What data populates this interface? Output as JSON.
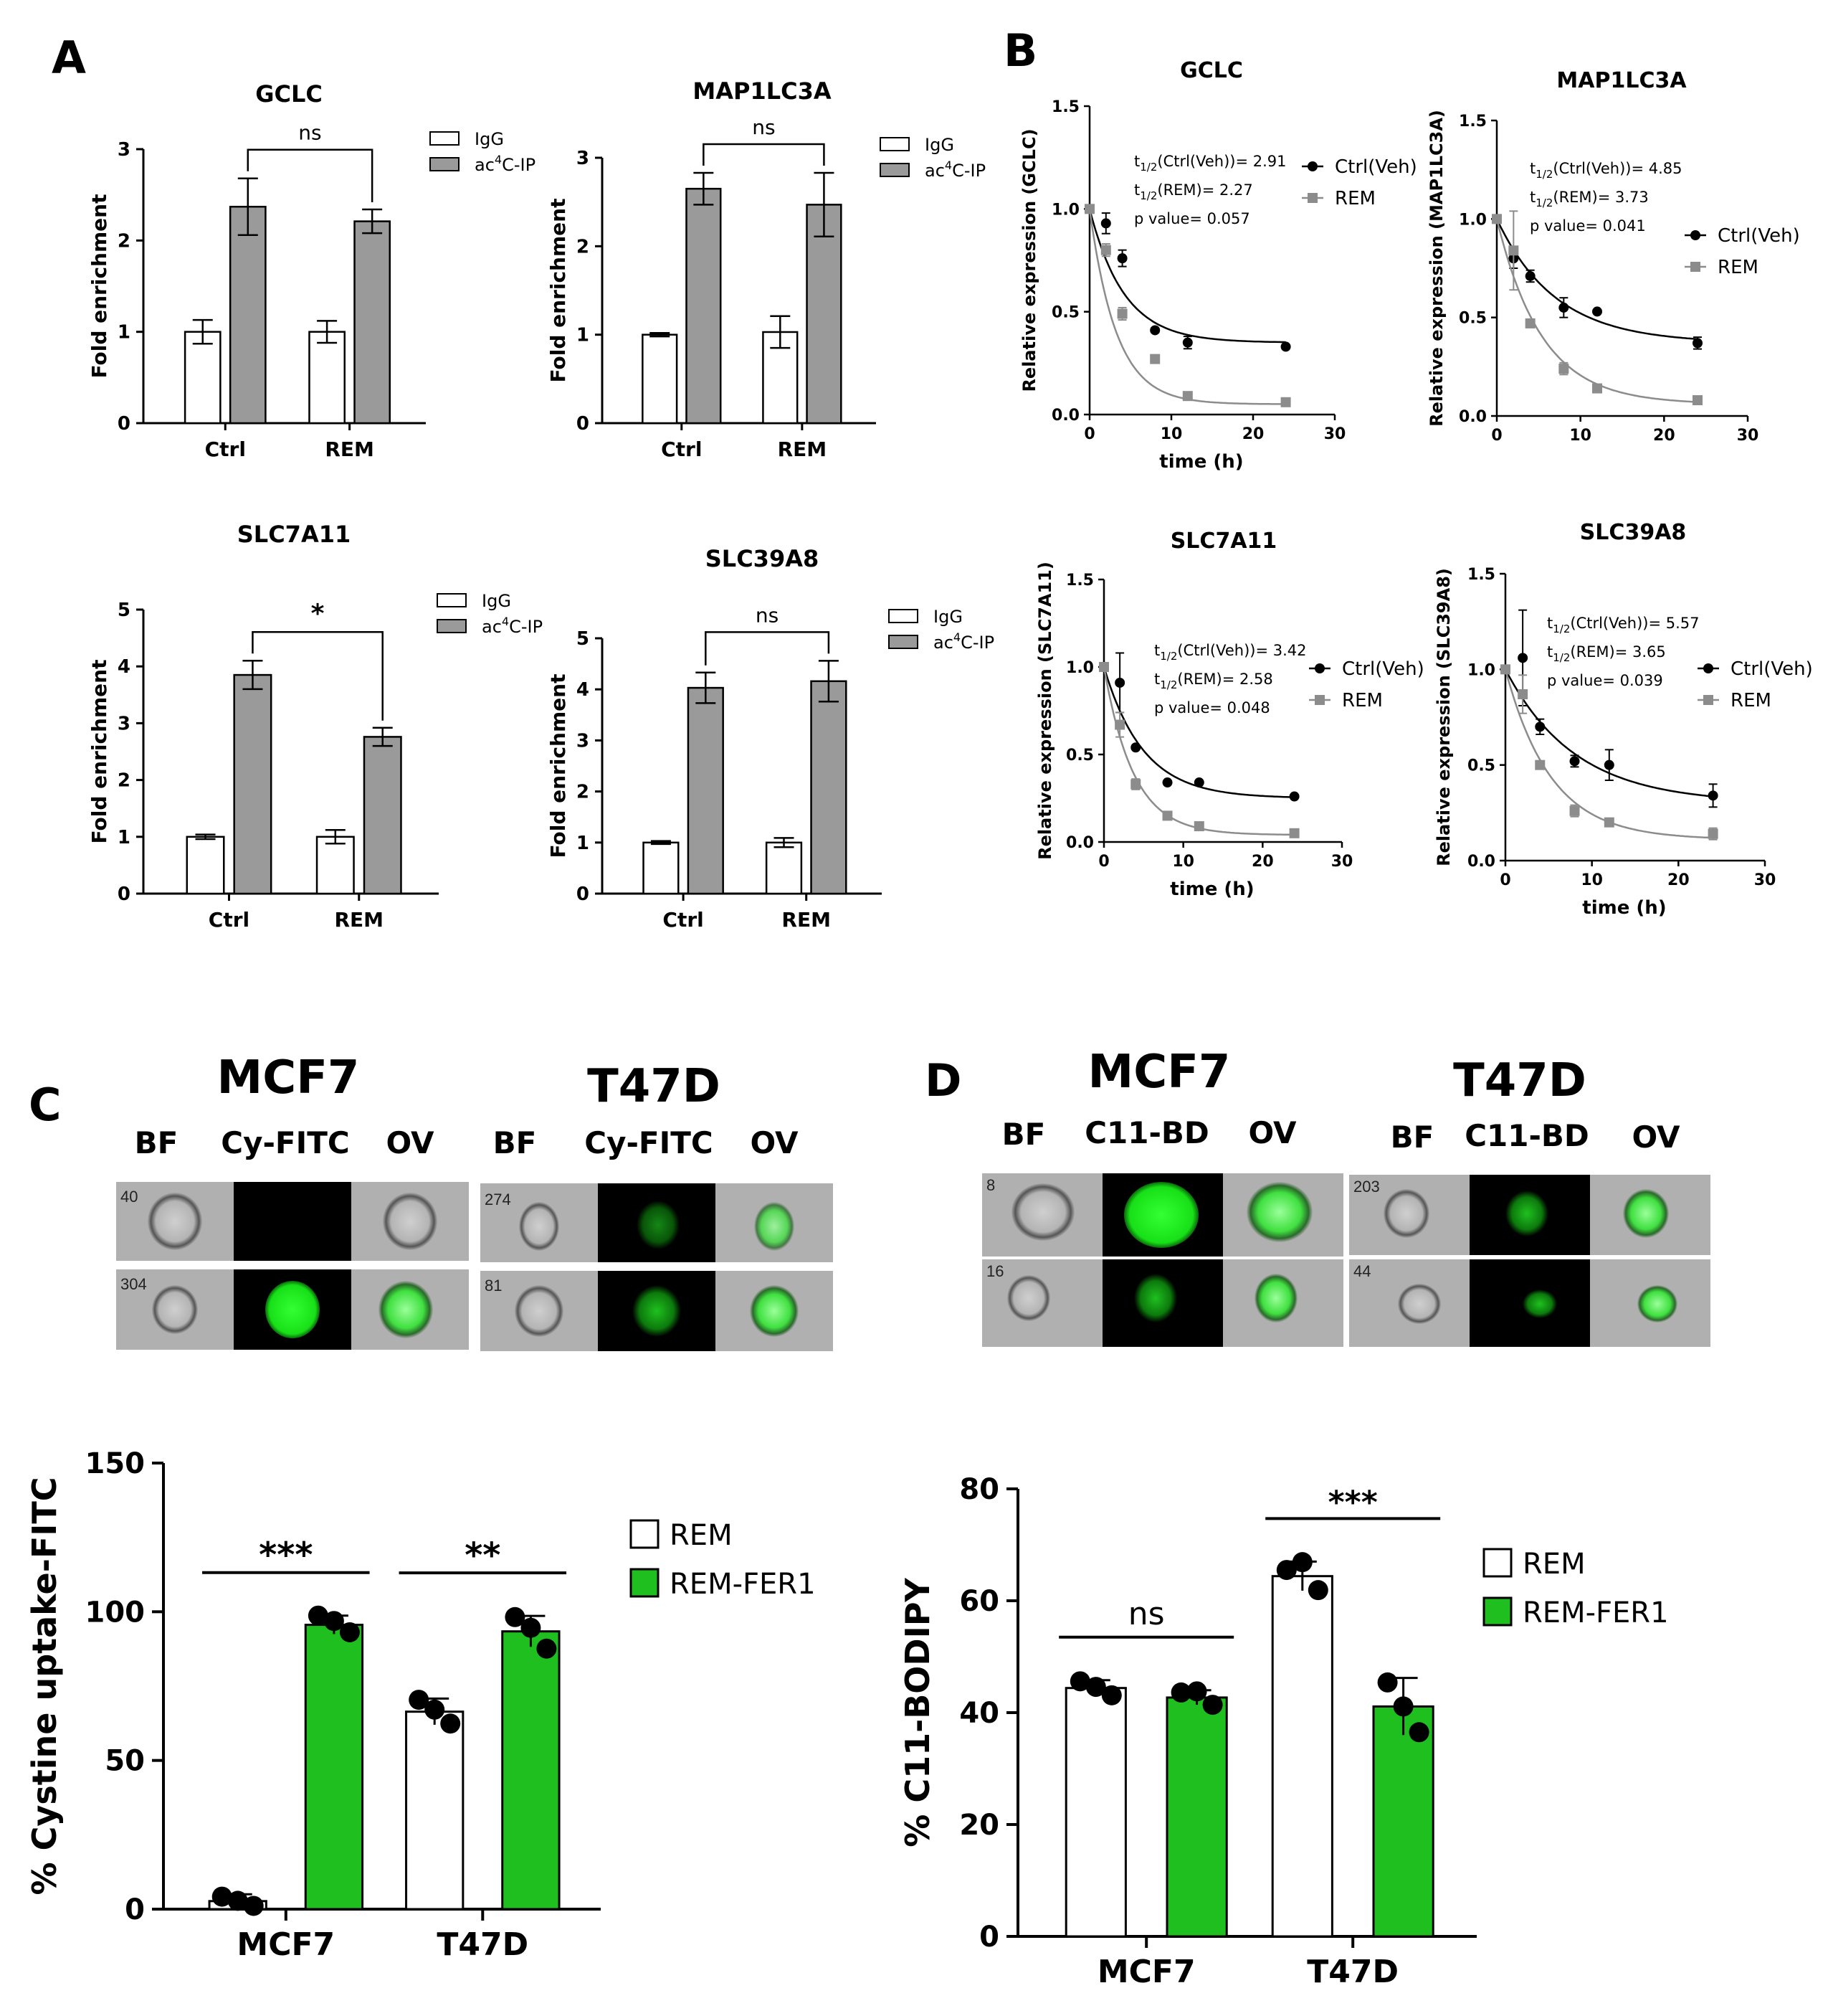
{
  "panel_letters": {
    "A": "A",
    "B": "B",
    "C": "C",
    "D": "D"
  },
  "chart_data": [
    {
      "id": "A1",
      "type": "bar",
      "title": "GCLC",
      "ylabel": "Fold enrichment",
      "categories": [
        "Ctrl",
        "REM"
      ],
      "ylim": [
        0,
        3
      ],
      "yticks": [
        0,
        1,
        2,
        3
      ],
      "series": [
        {
          "name": "IgG",
          "color": "#ffffff",
          "values": [
            1.0,
            1.0
          ],
          "errors": [
            0.13,
            0.12
          ]
        },
        {
          "name": "ac4C-IP",
          "color": "#9a9a9a",
          "values": [
            2.37,
            2.21
          ],
          "errors": [
            0.31,
            0.13
          ]
        }
      ],
      "significance": "ns"
    },
    {
      "id": "A2",
      "type": "bar",
      "title": "MAP1LC3A",
      "ylabel": "Fold enrichment",
      "categories": [
        "Ctrl",
        "REM"
      ],
      "ylim": [
        0,
        3
      ],
      "yticks": [
        0,
        1,
        2,
        3
      ],
      "series": [
        {
          "name": "IgG",
          "color": "#ffffff",
          "values": [
            1.0,
            1.03
          ],
          "errors": [
            0.02,
            0.18
          ]
        },
        {
          "name": "ac4C-IP",
          "color": "#9a9a9a",
          "values": [
            2.65,
            2.47
          ],
          "errors": [
            0.18,
            0.36
          ]
        }
      ],
      "significance": "ns"
    },
    {
      "id": "A3",
      "type": "bar",
      "title": "SLC7A11",
      "ylabel": "Fold enrichment",
      "categories": [
        "Ctrl",
        "REM"
      ],
      "ylim": [
        0,
        5
      ],
      "yticks": [
        0,
        1,
        2,
        3,
        4,
        5
      ],
      "series": [
        {
          "name": "IgG",
          "color": "#ffffff",
          "values": [
            1.0,
            1.0
          ],
          "errors": [
            0.04,
            0.12
          ]
        },
        {
          "name": "ac4C-IP",
          "color": "#9a9a9a",
          "values": [
            3.85,
            2.76
          ],
          "errors": [
            0.25,
            0.16
          ]
        }
      ],
      "significance": "*"
    },
    {
      "id": "A4",
      "type": "bar",
      "title": "SLC39A8",
      "ylabel": "Fold enrichment",
      "categories": [
        "Ctrl",
        "REM"
      ],
      "ylim": [
        0,
        5
      ],
      "yticks": [
        0,
        1,
        2,
        3,
        4,
        5
      ],
      "series": [
        {
          "name": "IgG",
          "color": "#ffffff",
          "values": [
            1.0,
            1.0
          ],
          "errors": [
            0.03,
            0.09
          ]
        },
        {
          "name": "ac4C-IP",
          "color": "#9a9a9a",
          "values": [
            4.03,
            4.16
          ],
          "errors": [
            0.3,
            0.4
          ]
        }
      ],
      "significance": "ns"
    },
    {
      "id": "B1",
      "type": "line",
      "title": "GCLC",
      "xlabel": "time (h)",
      "ylabel": "Relative expression (GCLC)",
      "xlim": [
        0,
        30
      ],
      "xticks": [
        0,
        10,
        20,
        30
      ],
      "ylim": [
        0,
        1.5
      ],
      "yticks": [
        0.0,
        0.5,
        1.0,
        1.5
      ],
      "series": [
        {
          "name": "Ctrl(Veh)",
          "color": "#000000",
          "marker": "circle",
          "x": [
            0,
            2,
            4,
            8,
            12,
            24
          ],
          "y": [
            1.0,
            0.93,
            0.76,
            0.41,
            0.35,
            0.33
          ],
          "errors": [
            0,
            0.05,
            0.04,
            0.01,
            0.03,
            0.01
          ],
          "half_life": 2.91,
          "plateau": 0.35
        },
        {
          "name": "REM",
          "color": "#8c8c8c",
          "marker": "square",
          "x": [
            0,
            2,
            4,
            8,
            12,
            24
          ],
          "y": [
            1.0,
            0.8,
            0.49,
            0.27,
            0.09,
            0.06
          ],
          "errors": [
            0,
            0.03,
            0.03,
            0.01,
            0.01,
            0.01
          ],
          "half_life": 2.27,
          "plateau": 0.05
        }
      ],
      "annotations": [
        "t1/2(Ctrl(Veh))= 2.91",
        "t1/2(REM)= 2.27",
        "p value= 0.057"
      ]
    },
    {
      "id": "B2",
      "type": "line",
      "title": "MAP1LC3A",
      "xlabel": "",
      "ylabel": "Relative expression (MAP1LC3A)",
      "xlim": [
        0,
        30
      ],
      "xticks": [
        0,
        10,
        20,
        30
      ],
      "ylim": [
        0,
        1.5
      ],
      "yticks": [
        0.0,
        0.5,
        1.0,
        1.5
      ],
      "series": [
        {
          "name": "Ctrl(Veh)",
          "color": "#000000",
          "marker": "circle",
          "x": [
            0,
            2,
            4,
            8,
            12,
            24
          ],
          "y": [
            1.0,
            0.8,
            0.71,
            0.55,
            0.53,
            0.37
          ],
          "errors": [
            0,
            0.05,
            0.03,
            0.05,
            0.01,
            0.03
          ],
          "half_life": 4.85,
          "plateau": 0.37
        },
        {
          "name": "REM",
          "color": "#8c8c8c",
          "marker": "square",
          "x": [
            0,
            2,
            4,
            8,
            12,
            24
          ],
          "y": [
            1.0,
            0.84,
            0.47,
            0.24,
            0.14,
            0.08
          ],
          "errors": [
            0,
            0.2,
            0.02,
            0.03,
            0.01,
            0.01
          ],
          "half_life": 3.73,
          "plateau": 0.06
        }
      ],
      "annotations": [
        "t1/2(Ctrl(Veh))= 4.85",
        "t1/2(REM)= 3.73",
        "p value= 0.041"
      ]
    },
    {
      "id": "B3",
      "type": "line",
      "title": "SLC7A11",
      "xlabel": "time (h)",
      "ylabel": "Relative expression (SLC7A11)",
      "xlim": [
        0,
        30
      ],
      "xticks": [
        0,
        10,
        20,
        30
      ],
      "ylim": [
        0,
        1.5
      ],
      "yticks": [
        0.0,
        0.5,
        1.0,
        1.5
      ],
      "series": [
        {
          "name": "Ctrl(Veh)",
          "color": "#000000",
          "marker": "circle",
          "x": [
            0,
            2,
            4,
            8,
            12,
            24
          ],
          "y": [
            1.0,
            0.91,
            0.54,
            0.34,
            0.34,
            0.26
          ],
          "errors": [
            0,
            0.17,
            0.01,
            0.01,
            0.01,
            0.01
          ],
          "half_life": 3.42,
          "plateau": 0.25
        },
        {
          "name": "REM",
          "color": "#8c8c8c",
          "marker": "square",
          "x": [
            0,
            2,
            4,
            8,
            12,
            24
          ],
          "y": [
            1.0,
            0.67,
            0.33,
            0.15,
            0.09,
            0.05
          ],
          "errors": [
            0,
            0.07,
            0.03,
            0.02,
            0.01,
            0.01
          ],
          "half_life": 2.58,
          "plateau": 0.04
        }
      ],
      "annotations": [
        "t1/2(Ctrl(Veh))= 3.42",
        "t1/2(REM)= 2.58",
        "p value= 0.048"
      ]
    },
    {
      "id": "B4",
      "type": "line",
      "title": "SLC39A8",
      "xlabel": "time (h)",
      "ylabel": "Relative expression (SLC39A8)",
      "xlim": [
        0,
        30
      ],
      "xticks": [
        0,
        10,
        20,
        30
      ],
      "ylim": [
        0,
        1.5
      ],
      "yticks": [
        0.0,
        0.5,
        1.0,
        1.5
      ],
      "series": [
        {
          "name": "Ctrl(Veh)",
          "color": "#000000",
          "marker": "circle",
          "x": [
            0,
            2,
            4,
            8,
            12,
            24
          ],
          "y": [
            1.0,
            1.06,
            0.7,
            0.52,
            0.5,
            0.34
          ],
          "errors": [
            0,
            0.25,
            0.04,
            0.03,
            0.08,
            0.06
          ],
          "half_life": 5.57,
          "plateau": 0.3
        },
        {
          "name": "REM",
          "color": "#8c8c8c",
          "marker": "square",
          "x": [
            0,
            2,
            4,
            8,
            12,
            24
          ],
          "y": [
            1.0,
            0.87,
            0.5,
            0.26,
            0.2,
            0.14
          ],
          "errors": [
            0,
            0.1,
            0.02,
            0.03,
            0.02,
            0.03
          ],
          "half_life": 3.65,
          "plateau": 0.11
        }
      ],
      "annotations": [
        "t1/2(Ctrl(Veh))= 5.57",
        "t1/2(REM)= 3.65",
        "p value= 0.039"
      ]
    },
    {
      "id": "C2",
      "type": "bar",
      "title": "",
      "ylabel": "% Cystine uptake-FITC",
      "categories": [
        "MCF7",
        "T47D"
      ],
      "ylim": [
        0,
        150
      ],
      "yticks": [
        0,
        50,
        100,
        150
      ],
      "series": [
        {
          "name": "REM",
          "color": "#ffffff",
          "values": [
            2.7,
            66.4
          ],
          "errors": [
            2.3,
            4.4
          ],
          "points": [
            [
              4.2,
              2.8,
              1.1
            ],
            [
              70.4,
              67.1,
              62.4
            ]
          ]
        },
        {
          "name": "REM-FER1",
          "color": "#1fbf1f",
          "values": [
            95.6,
            93.4
          ],
          "errors": [
            3.1,
            5.2
          ],
          "points": [
            [
              98.7,
              96.9,
              93.1
            ],
            [
              98.2,
              94.6,
              87.6
            ]
          ]
        }
      ],
      "significance": [
        "***",
        "**"
      ]
    },
    {
      "id": "D2",
      "type": "bar",
      "title": "",
      "ylabel": "% C11-BODIPY",
      "categories": [
        "MCF7",
        "T47D"
      ],
      "ylim": [
        0,
        80
      ],
      "yticks": [
        0,
        20,
        40,
        60,
        80
      ],
      "series": [
        {
          "name": "REM",
          "color": "#ffffff",
          "values": [
            44.4,
            64.4
          ],
          "errors": [
            1.4,
            2.6
          ],
          "points": [
            [
              45.6,
              44.6,
              43.1
            ],
            [
              65.5,
              66.9,
              61.9
            ]
          ]
        },
        {
          "name": "REM-FER1",
          "color": "#1fbf1f",
          "values": [
            42.7,
            41.1
          ],
          "errors": [
            1.3,
            5.1
          ],
          "points": [
            [
              43.6,
              43.8,
              41.4
            ],
            [
              45.4,
              41.1,
              36.5
            ]
          ]
        }
      ],
      "significance": [
        "ns",
        "***"
      ]
    }
  ],
  "panel_c": {
    "cell_lines": [
      "MCF7",
      "T47D"
    ],
    "channels": [
      "BF",
      "Cy-FITC",
      "OV"
    ],
    "cell_numbers": [
      "40",
      "304",
      "274",
      "81"
    ]
  },
  "panel_d": {
    "cell_lines": [
      "MCF7",
      "T47D"
    ],
    "channels": [
      "BF",
      "C11-BD",
      "OV"
    ],
    "cell_numbers": [
      "8",
      "16",
      "203",
      "44"
    ]
  },
  "colors": {
    "igg": "#ffffff",
    "ac4c": "#9a9a9a",
    "ctrl": "#000000",
    "rem": "#8c8c8c",
    "fer1": "#1fbf1f",
    "fluor": "#22e022"
  }
}
